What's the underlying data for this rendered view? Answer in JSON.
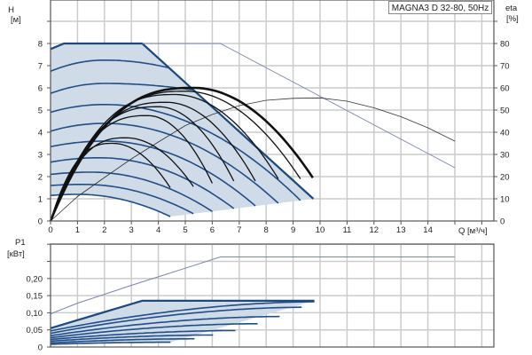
{
  "legend": "MAGNA3 D 32-80, 50Hz",
  "colors": {
    "grid": "#cccccc",
    "fill": "#cfdbe7",
    "speed_curve": "#1f4e89",
    "envelope": "#1a4a80",
    "black_curve": "#111111",
    "gray_line": "#7a87a8",
    "axis": "#555555"
  },
  "chart_data": [
    {
      "type": "line",
      "panel": "head-efficiency",
      "ylabel": "H",
      "yunit": "[м]",
      "y2label": "eta",
      "y2unit": "[%]",
      "xlabel": "Q [м³/ч]",
      "xlim": [
        0,
        16.4
      ],
      "ylim": [
        0,
        10
      ],
      "y2lim": [
        0,
        100
      ],
      "grid": true,
      "x_ticks": [
        "0",
        "1",
        "2",
        "3",
        "4",
        "5",
        "6",
        "7",
        "8",
        "9",
        "10",
        "11",
        "12",
        "13",
        "14"
      ],
      "y_ticks": [
        "0",
        "1",
        "2",
        "3",
        "4",
        "5",
        "6",
        "7",
        "8"
      ],
      "y2_ticks": [
        "0",
        "10",
        "20",
        "30",
        "40",
        "50",
        "60",
        "70",
        "80"
      ],
      "envelope": [
        [
          0,
          7.75
        ],
        [
          0.5,
          8
        ],
        [
          3.4,
          8
        ],
        [
          9.75,
          1.0
        ]
      ],
      "lower_boundary": [
        [
          4.44,
          0.2
        ],
        [
          9.75,
          1.0
        ]
      ],
      "speed_curves": [
        {
          "h0": 1.15,
          "peak": 1.2,
          "q_peak": 1.0,
          "q_end": 4.44,
          "h_end": 0.2
        },
        {
          "h0": 1.6,
          "peak": 1.65,
          "q_peak": 1.2,
          "q_end": 5.3,
          "h_end": 0.33
        },
        {
          "h0": 2.1,
          "peak": 2.2,
          "q_peak": 1.5,
          "q_end": 6.0,
          "h_end": 0.43
        },
        {
          "h0": 2.65,
          "peak": 2.85,
          "q_peak": 1.8,
          "q_end": 6.8,
          "h_end": 0.56
        },
        {
          "h0": 3.35,
          "peak": 3.6,
          "q_peak": 2.0,
          "q_end": 7.6,
          "h_end": 0.68
        },
        {
          "h0": 4.05,
          "peak": 4.4,
          "q_peak": 2.0,
          "q_end": 8.45,
          "h_end": 0.8
        },
        {
          "h0": 4.9,
          "peak": 5.25,
          "q_peak": 2.0,
          "q_end": 9.27,
          "h_end": 0.93
        },
        {
          "h0": 5.75,
          "peak": 6.2,
          "q_peak": 2.0,
          "q_end": 5.3,
          "h_end": 5.9
        },
        {
          "h0": 6.75,
          "peak": 7.25,
          "q_peak": 2.0,
          "q_end": 4.4,
          "h_end": 6.9
        }
      ],
      "black_curves": [
        {
          "peak": 3.5,
          "q_peak": 2.3,
          "q_end": 4.44,
          "h_end": 1.5,
          "bold": false
        },
        {
          "peak": 3.75,
          "q_peak": 2.8,
          "q_end": 5.3,
          "h_end": 1.55,
          "bold": false
        },
        {
          "peak": 4.75,
          "q_peak": 3.6,
          "q_end": 6.0,
          "h_end": 1.7,
          "bold": false
        },
        {
          "peak": 5.15,
          "q_peak": 4.0,
          "q_end": 6.8,
          "h_end": 1.8,
          "bold": false
        },
        {
          "peak": 5.35,
          "q_peak": 4.3,
          "q_end": 7.6,
          "h_end": 1.8,
          "bold": false
        },
        {
          "peak": 5.7,
          "q_peak": 4.6,
          "q_end": 8.45,
          "h_end": 1.9,
          "bold": false
        },
        {
          "peak": 5.85,
          "q_peak": 5.0,
          "q_end": 9.27,
          "h_end": 1.9,
          "bold": false
        },
        {
          "peak": 6.0,
          "q_peak": 5.3,
          "q_end": 9.73,
          "h_end": 1.95,
          "bold": true
        }
      ],
      "max_head_line": [
        [
          3.4,
          8
        ],
        [
          6.3,
          8
        ],
        [
          15,
          2.4
        ]
      ],
      "efficiency": [
        [
          0,
          0
        ],
        [
          1,
          11
        ],
        [
          2,
          19.6
        ],
        [
          3,
          28
        ],
        [
          4,
          35.6
        ],
        [
          5,
          43
        ],
        [
          6,
          48
        ],
        [
          7,
          52
        ],
        [
          8,
          54.4
        ],
        [
          9,
          55.3
        ],
        [
          10,
          55.5
        ],
        [
          11,
          54
        ],
        [
          12,
          51
        ],
        [
          13,
          47
        ],
        [
          14,
          42
        ],
        [
          15,
          36
        ]
      ]
    },
    {
      "type": "line",
      "panel": "power",
      "ylabel": "P1",
      "yunit": "[кВт]",
      "xlim": [
        0,
        16.4
      ],
      "ylim": [
        0,
        0.3
      ],
      "grid": true,
      "y_ticks": [
        "0",
        "0,05",
        "0,10",
        "0,15",
        "0,20"
      ],
      "y_tick_values": [
        0,
        0.05,
        0.1,
        0.15,
        0.2
      ],
      "envelope": [
        [
          0,
          0.055
        ],
        [
          3.4,
          0.135
        ],
        [
          9.79,
          0.135
        ]
      ],
      "power_curves": [
        {
          "p0": 0.008,
          "q_end": 4.45,
          "p_end": 0.014
        },
        {
          "p0": 0.012,
          "q_end": 5.34,
          "p_end": 0.024
        },
        {
          "p0": 0.017,
          "q_end": 6.03,
          "p_end": 0.035
        },
        {
          "p0": 0.022,
          "q_end": 6.86,
          "p_end": 0.048
        },
        {
          "p0": 0.027,
          "q_end": 7.68,
          "p_end": 0.068
        },
        {
          "p0": 0.033,
          "q_end": 8.5,
          "p_end": 0.089
        },
        {
          "p0": 0.04,
          "q_end": 9.32,
          "p_end": 0.116
        },
        {
          "p0": 0.047,
          "q_end": 9.79,
          "p_end": 0.132
        }
      ],
      "max_power_line": [
        [
          0,
          0.097
        ],
        [
          1,
          0.128
        ],
        [
          2,
          0.154
        ],
        [
          3,
          0.18
        ],
        [
          4,
          0.205
        ],
        [
          5,
          0.23
        ],
        [
          6.3,
          0.263
        ],
        [
          15,
          0.263
        ]
      ]
    }
  ]
}
